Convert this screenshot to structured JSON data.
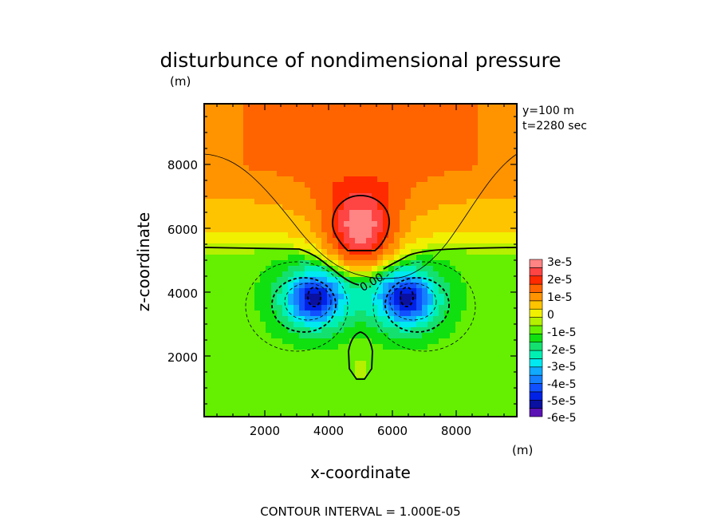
{
  "chart_data": {
    "type": "heatmap",
    "subtype": "filled contour",
    "title": "disturbunce of nondimensional pressure",
    "title_unit": "(m)",
    "xlabel": "x-coordinate",
    "ylabel": "z-coordinate",
    "x_unit": "(m)",
    "xlim": [
      100,
      9900
    ],
    "ylim": [
      100,
      9900
    ],
    "x_ticks": [
      "2000",
      "4000",
      "6000",
      "8000"
    ],
    "y_ticks": [
      "2000",
      "4000",
      "6000",
      "8000"
    ],
    "x_tick_values": [
      2000,
      4000,
      6000,
      8000
    ],
    "y_tick_values": [
      2000,
      4000,
      6000,
      8000
    ],
    "annotations": [
      "y=100 m",
      "t=2280 sec"
    ],
    "contour_label": "0.00",
    "footer": "CONTOUR INTERVAL = 1.000E-05",
    "contour_interval": 1e-05,
    "colorbar": {
      "labels": [
        "3e-5",
        "2e-5",
        "1e-5",
        "0",
        "-1e-5",
        "-2e-5",
        "-3e-5",
        "-4e-5",
        "-5e-5",
        "-6e-5"
      ],
      "label_values": [
        3e-05,
        2e-05,
        1e-05,
        0,
        -1e-05,
        -2e-05,
        -3e-05,
        -4e-05,
        -5e-05,
        -6e-05
      ],
      "min": -6e-05,
      "max": 3.5e-05,
      "step": 5e-06,
      "colors": [
        "#5a12b4",
        "#0a10a0",
        "#0022e6",
        "#1050ff",
        "#1480ff",
        "#10aaff",
        "#00e8f0",
        "#00f0b4",
        "#14e070",
        "#10e010",
        "#64f000",
        "#b4f000",
        "#f0f000",
        "#ffc400",
        "#ff9400",
        "#ff6400",
        "#ff2a00",
        "#ff4444",
        "#ff8484"
      ]
    },
    "features": [
      {
        "kind": "maximum",
        "x": 5000,
        "z": 5900,
        "value": 3e-05
      },
      {
        "kind": "minimum",
        "x": 3500,
        "z": 3900,
        "value": -5e-05
      },
      {
        "kind": "minimum",
        "x": 6500,
        "z": 3900,
        "value": -5e-05
      }
    ],
    "grid": false,
    "legend": "right"
  }
}
